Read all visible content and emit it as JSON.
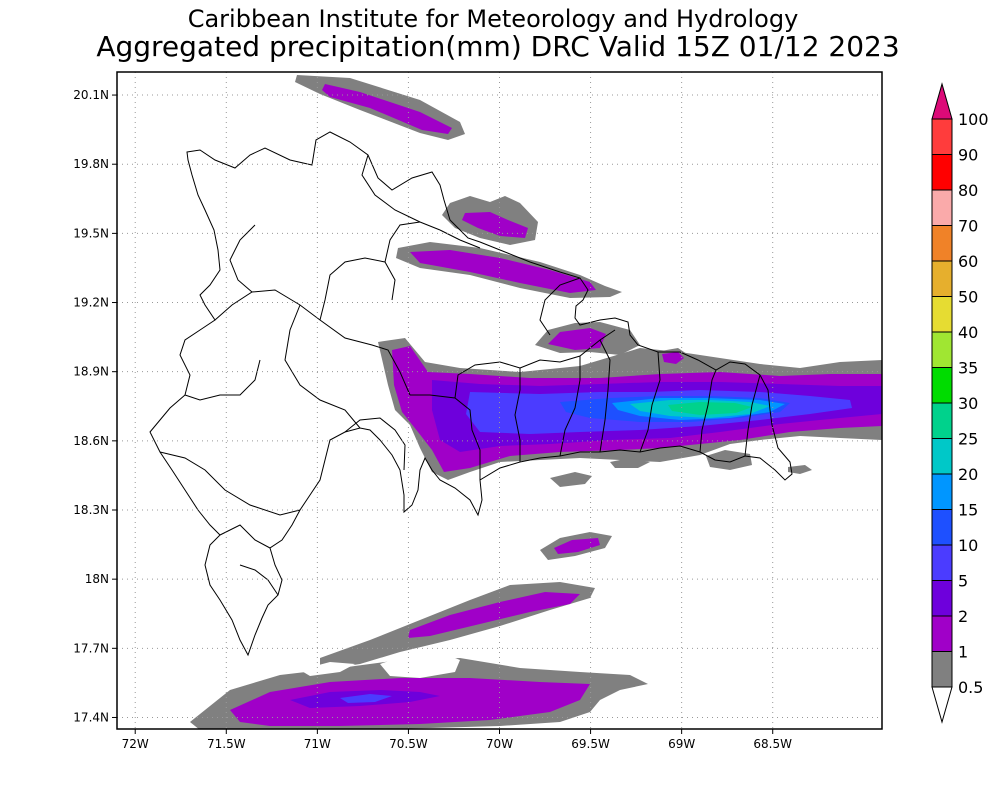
{
  "title": {
    "line1": "Caribbean Institute for Meteorology and Hydrology",
    "line2": "Aggregated precipitation(mm) DRC Valid 15Z 01/12 2023"
  },
  "map": {
    "region": "Dominican Republic",
    "lon_range": [
      -72.1,
      -67.9
    ],
    "lat_range": [
      17.35,
      20.2
    ],
    "grid": true,
    "x_ticks": [
      {
        "value": -72.0,
        "label": "72W"
      },
      {
        "value": -71.5,
        "label": "71.5W"
      },
      {
        "value": -71.0,
        "label": "71W"
      },
      {
        "value": -70.5,
        "label": "70.5W"
      },
      {
        "value": -70.0,
        "label": "70W"
      },
      {
        "value": -69.5,
        "label": "69.5W"
      },
      {
        "value": -69.0,
        "label": "69W"
      },
      {
        "value": -68.5,
        "label": "68.5W"
      }
    ],
    "y_ticks": [
      {
        "value": 20.1,
        "label": "20.1N"
      },
      {
        "value": 19.8,
        "label": "19.8N"
      },
      {
        "value": 19.5,
        "label": "19.5N"
      },
      {
        "value": 19.2,
        "label": "19.2N"
      },
      {
        "value": 18.9,
        "label": "18.9N"
      },
      {
        "value": 18.6,
        "label": "18.6N"
      },
      {
        "value": 18.3,
        "label": "18.3N"
      },
      {
        "value": 18.0,
        "label": "18N"
      },
      {
        "value": 17.7,
        "label": "17.7N"
      },
      {
        "value": 17.4,
        "label": "17.4N"
      }
    ]
  },
  "legend": {
    "levels": [
      {
        "label": "0.5",
        "color": "#ffffff"
      },
      {
        "label": "1",
        "color": "#808080"
      },
      {
        "label": "2",
        "color": "#a000c8"
      },
      {
        "label": "5",
        "color": "#6e00dc"
      },
      {
        "label": "10",
        "color": "#4b3cff"
      },
      {
        "label": "15",
        "color": "#1e50ff"
      },
      {
        "label": "20",
        "color": "#0096ff"
      },
      {
        "label": "25",
        "color": "#00c8c8"
      },
      {
        "label": "30",
        "color": "#00d28c"
      },
      {
        "label": "35",
        "color": "#00dc00"
      },
      {
        "label": "40",
        "color": "#a0e632"
      },
      {
        "label": "50",
        "color": "#e6dc32"
      },
      {
        "label": "60",
        "color": "#e6af2d"
      },
      {
        "label": "70",
        "color": "#f08228"
      },
      {
        "label": "80",
        "color": "#faaaaa"
      },
      {
        "label": "90",
        "color": "#ff0000"
      },
      {
        "label": "100",
        "color": "#ff3c3c"
      }
    ],
    "top_arrow_color": "#dc0a78"
  }
}
